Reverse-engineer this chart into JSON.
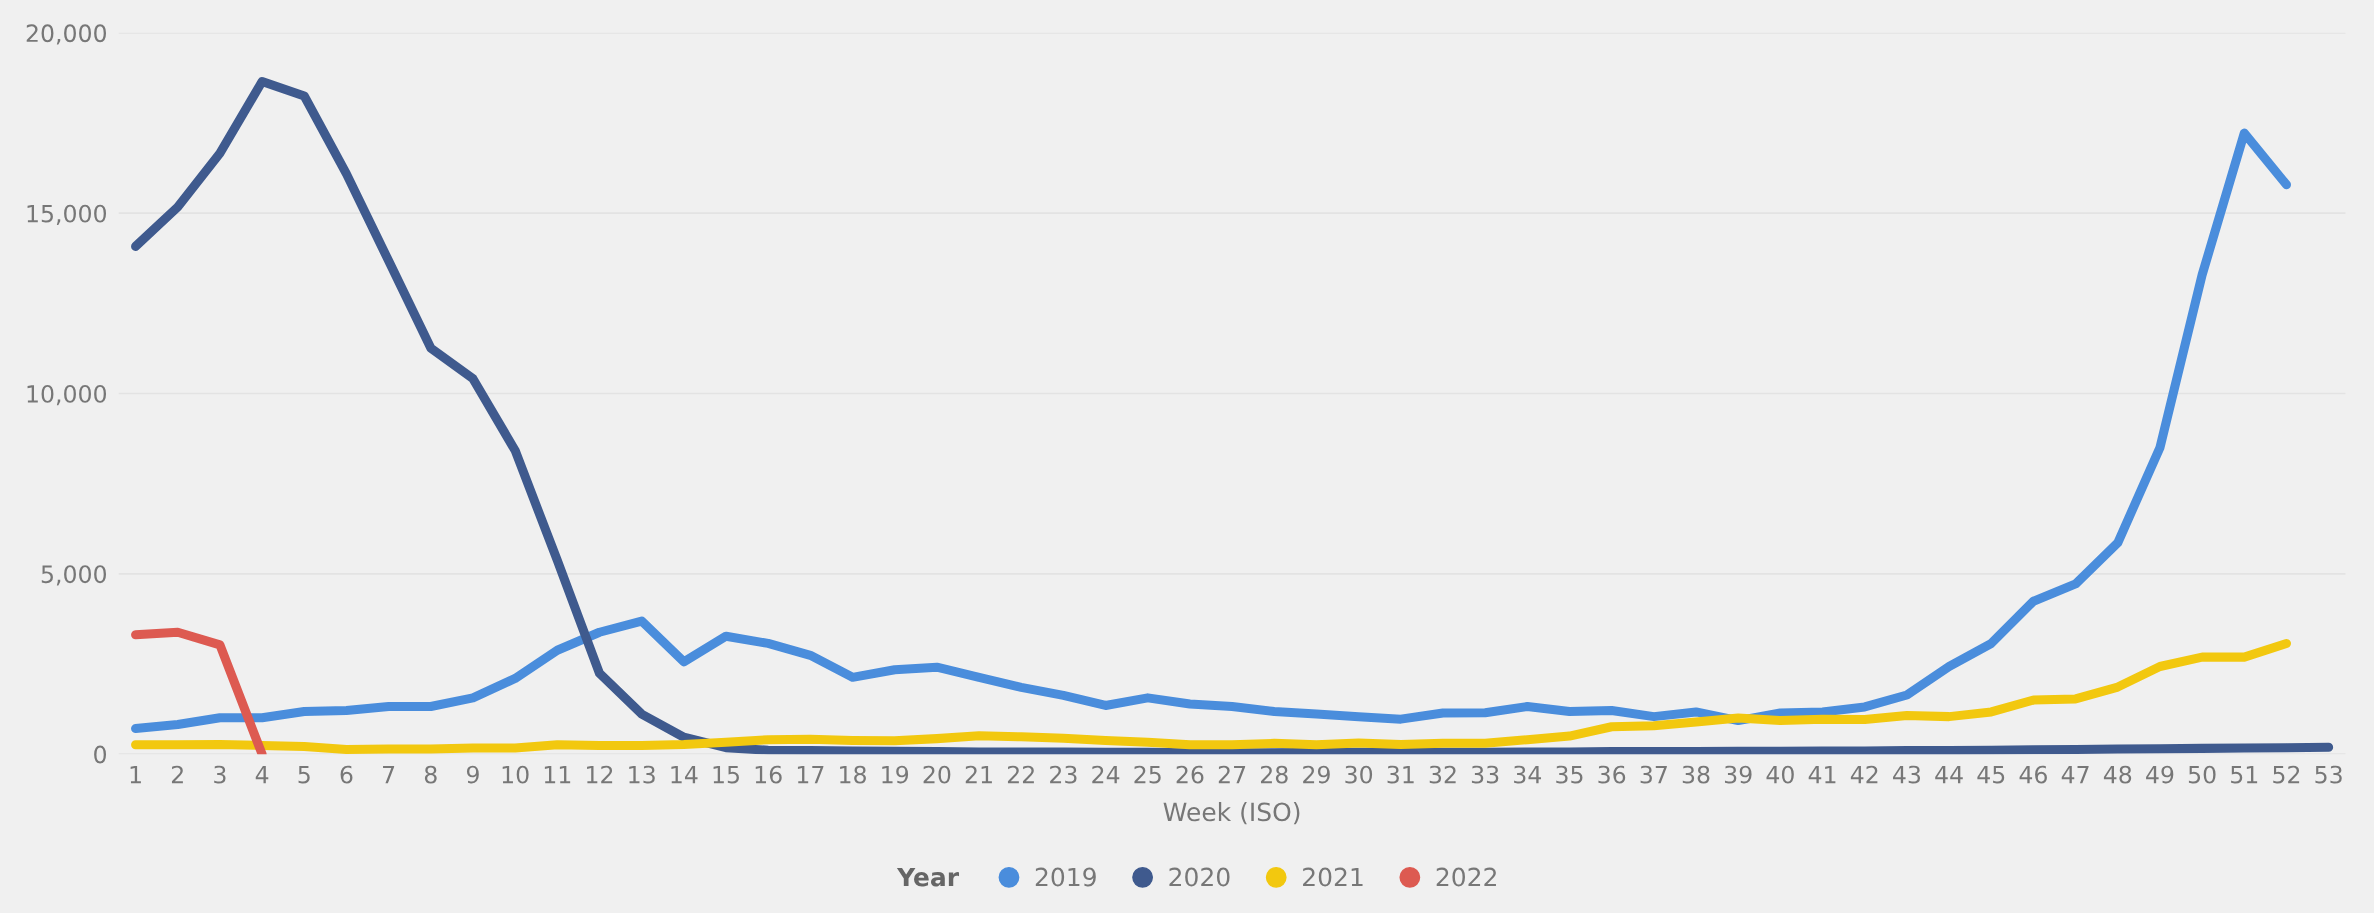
{
  "chart_data": {
    "type": "line",
    "xlabel": "Week (ISO)",
    "legend_title": "Year",
    "categories": [
      "1",
      "2",
      "3",
      "4",
      "5",
      "6",
      "7",
      "8",
      "9",
      "10",
      "11",
      "12",
      "13",
      "14",
      "15",
      "16",
      "17",
      "18",
      "19",
      "20",
      "21",
      "22",
      "23",
      "24",
      "25",
      "26",
      "27",
      "28",
      "29",
      "30",
      "31",
      "32",
      "33",
      "34",
      "35",
      "36",
      "37",
      "38",
      "39",
      "40",
      "41",
      "42",
      "43",
      "44",
      "45",
      "46",
      "47",
      "48",
      "49",
      "50",
      "51",
      "52",
      "53"
    ],
    "series": [
      {
        "name": "2019",
        "color": "#4a8ddc",
        "values": [
          710,
          820,
          1010,
          1010,
          1180,
          1210,
          1320,
          1320,
          1560,
          2100,
          2880,
          3380,
          3690,
          2560,
          3270,
          3070,
          2740,
          2130,
          2340,
          2410,
          2130,
          1850,
          1630,
          1350,
          1560,
          1390,
          1320,
          1180,
          1110,
          1040,
          970,
          1140,
          1150,
          1320,
          1180,
          1210,
          1040,
          1170,
          930,
          1140,
          1170,
          1310,
          1640,
          2430,
          3070,
          4240,
          4720,
          5860,
          8500,
          13290,
          17220,
          15790,
          null
        ]
      },
      {
        "name": "2020",
        "color": "#3f5a8e",
        "values": [
          14080,
          15170,
          16660,
          18650,
          18250,
          16090,
          13680,
          11260,
          10410,
          8420,
          5370,
          2240,
          1110,
          470,
          180,
          110,
          100,
          90,
          80,
          70,
          60,
          60,
          60,
          50,
          50,
          40,
          40,
          40,
          50,
          50,
          50,
          50,
          50,
          60,
          60,
          70,
          70,
          70,
          80,
          80,
          90,
          90,
          100,
          100,
          110,
          120,
          130,
          140,
          150,
          160,
          170,
          180,
          190
        ]
      },
      {
        "name": "2021",
        "color": "#f2c80f",
        "values": [
          260,
          260,
          270,
          240,
          210,
          130,
          140,
          140,
          170,
          170,
          260,
          240,
          240,
          270,
          330,
          400,
          410,
          380,
          370,
          430,
          510,
          480,
          440,
          380,
          330,
          260,
          260,
          300,
          260,
          310,
          270,
          300,
          300,
          400,
          500,
          760,
          790,
          890,
          1000,
          930,
          970,
          960,
          1070,
          1040,
          1170,
          1500,
          1530,
          1860,
          2430,
          2690,
          2690,
          3070,
          null
        ]
      },
      {
        "name": "2022",
        "color": "#dd5a51",
        "values": [
          3310,
          3380,
          3030,
          0,
          null,
          null,
          null,
          null,
          null,
          null,
          null,
          null,
          null,
          null,
          null,
          null,
          null,
          null,
          null,
          null,
          null,
          null,
          null,
          null,
          null,
          null,
          null,
          null,
          null,
          null,
          null,
          null,
          null,
          null,
          null,
          null,
          null,
          null,
          null,
          null,
          null,
          null,
          null,
          null,
          null,
          null,
          null,
          null,
          null,
          null,
          null,
          null,
          null
        ]
      }
    ],
    "ylim": [
      0,
      20000
    ],
    "yticks": [
      {
        "value": 0,
        "label": "0"
      },
      {
        "value": 5000,
        "label": "5,000"
      },
      {
        "value": 10000,
        "label": "10,000"
      },
      {
        "value": 15000,
        "label": "15,000"
      },
      {
        "value": 20000,
        "label": "20,000"
      }
    ],
    "grid": "y",
    "legend": "bottom",
    "marker": "none",
    "line_style": "solid"
  }
}
